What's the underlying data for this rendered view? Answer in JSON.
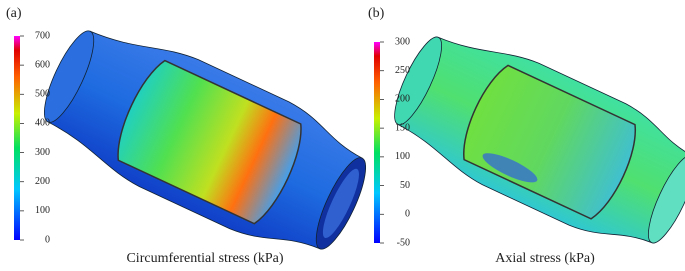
{
  "panels": [
    {
      "label": "(a)",
      "caption": "Circumferential stress (kPa)",
      "colorbar": {
        "lim": [
          0,
          700
        ],
        "ticks": [
          0,
          100,
          200,
          300,
          400,
          500,
          600,
          700
        ]
      }
    },
    {
      "label": "(b)",
      "caption": "Axial stress (kPa)",
      "colorbar": {
        "lim": [
          -50,
          300
        ],
        "ticks": [
          -50,
          0,
          50,
          100,
          150,
          200,
          250,
          300
        ]
      }
    }
  ]
}
